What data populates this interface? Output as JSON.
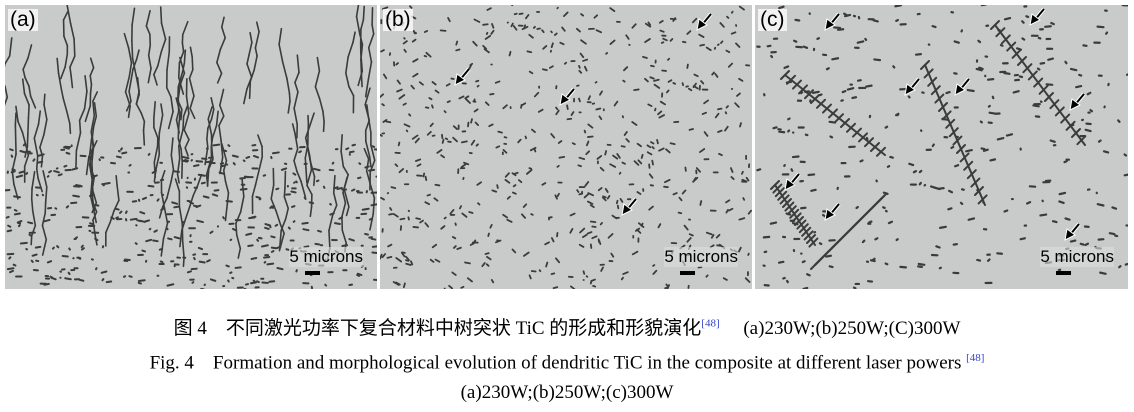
{
  "panels": [
    {
      "label": "(a)",
      "scale": "5 microns"
    },
    {
      "label": "(b)",
      "scale": "5 microns"
    },
    {
      "label": "(c)",
      "scale": "5 microns"
    }
  ],
  "caption": {
    "cn_fig": "图 4",
    "cn_text": "不同激光功率下复合材料中树突状 TiC 的形成和形貌演化",
    "cn_ref": "[48]",
    "cn_conditions": "(a)230W;(b)250W;(C)300W",
    "en_fig": "Fig. 4",
    "en_text": "Formation and morphological evolution of dendritic TiC in the composite at different laser powers",
    "en_ref": "[48]",
    "en_conditions": "(a)230W;(b)250W;(c)300W"
  },
  "colors": {
    "background": "#c9cbcb",
    "features": "#3a3c3c",
    "ref_link": "#3344cc"
  }
}
